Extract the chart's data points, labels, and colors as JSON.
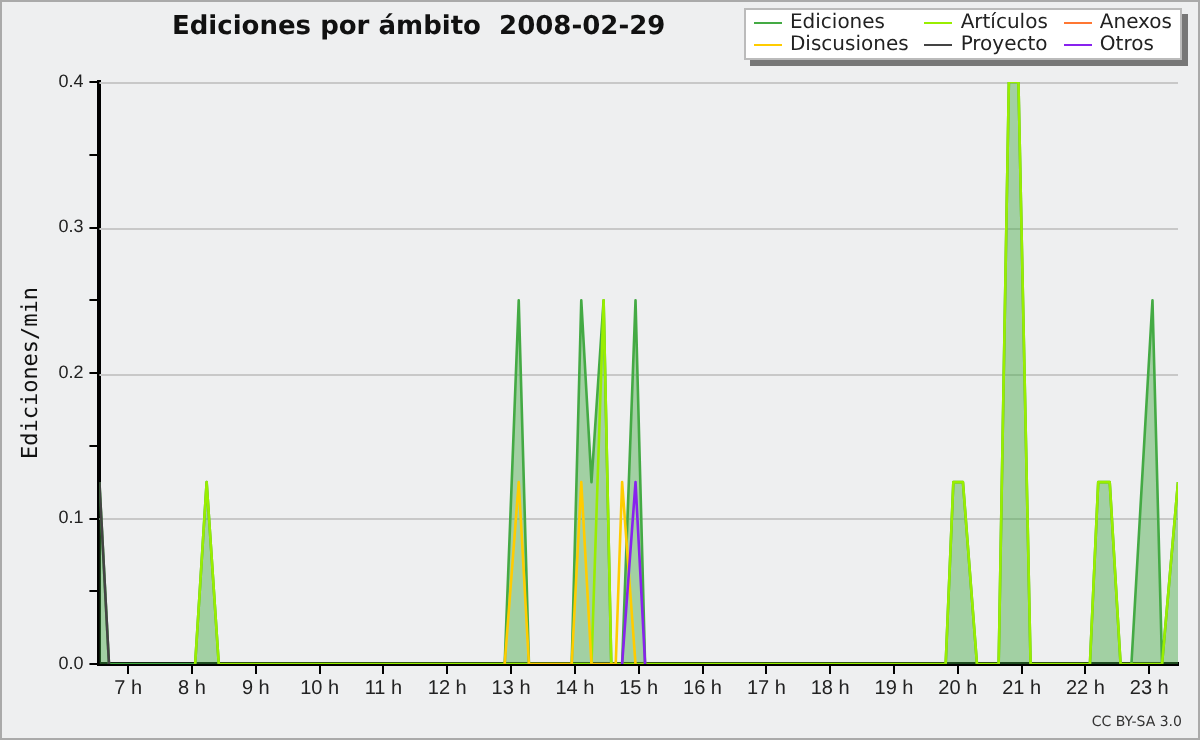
{
  "chart_data": {
    "type": "area",
    "title": "Ediciones por ámbito  2008-02-29",
    "ylabel": "Ediciones/min",
    "xlim": [
      6.55,
      23.45
    ],
    "xticks": [
      {
        "value": 7,
        "label": "7 h"
      },
      {
        "value": 8,
        "label": "8 h"
      },
      {
        "value": 9,
        "label": "9 h"
      },
      {
        "value": 10,
        "label": "10 h"
      },
      {
        "value": 11,
        "label": "11 h"
      },
      {
        "value": 12,
        "label": "12 h"
      },
      {
        "value": 13,
        "label": "13 h"
      },
      {
        "value": 14,
        "label": "14 h"
      },
      {
        "value": 15,
        "label": "15 h"
      },
      {
        "value": 16,
        "label": "16 h"
      },
      {
        "value": 17,
        "label": "17 h"
      },
      {
        "value": 18,
        "label": "18 h"
      },
      {
        "value": 19,
        "label": "19 h"
      },
      {
        "value": 20,
        "label": "20 h"
      },
      {
        "value": 21,
        "label": "21 h"
      },
      {
        "value": 22,
        "label": "22 h"
      },
      {
        "value": 23,
        "label": "23 h"
      }
    ],
    "ylim": [
      0,
      0.4
    ],
    "yticks": [
      {
        "value": 0,
        "label": "0.0"
      },
      {
        "value": 0.05,
        "label": null
      },
      0.1,
      {
        "value": 0.15,
        "label": null
      },
      0.2,
      {
        "value": 0.25,
        "label": null
      },
      0.3,
      {
        "value": 0.35,
        "label": null
      },
      0.4
    ],
    "grid": "y",
    "legend": "top right",
    "marker": "none",
    "line_style": "solid",
    "series": [
      {
        "name": "Ediciones",
        "color": "#44aa44",
        "x": [
          6.55,
          6.7,
          8.05,
          8.23,
          8.42,
          12.9,
          13.12,
          13.28,
          13.95,
          14.1,
          14.26,
          14.45,
          14.57,
          14.74,
          14.95,
          15.1,
          19.81,
          19.93,
          20.08,
          20.3,
          20.64,
          20.8,
          20.95,
          21.14,
          22.07,
          22.2,
          22.38,
          22.55,
          22.72,
          23.05,
          23.2,
          23.45
        ],
        "values": [
          0.125,
          0,
          0,
          0.125,
          0,
          0,
          0.25,
          0,
          0,
          0.25,
          0.125,
          0.25,
          0,
          0,
          0.25,
          0,
          0,
          0.125,
          0.125,
          0,
          0,
          0.4,
          0.4,
          0,
          0,
          0.125,
          0.125,
          0,
          0,
          0.25,
          0,
          0.125
        ]
      },
      {
        "name": "Artículos",
        "type": "line",
        "color": "#99ee00",
        "x": [
          8.05,
          8.23,
          8.42,
          14.26,
          14.45,
          14.57,
          19.81,
          19.93,
          20.08,
          20.3,
          20.64,
          20.8,
          20.95,
          21.14,
          22.07,
          22.2,
          22.38,
          22.55,
          23.2,
          23.45
        ],
        "values": [
          0,
          0.125,
          0,
          0,
          0.25,
          0,
          0,
          0.125,
          0.125,
          0,
          0,
          0.4,
          0.4,
          0,
          0,
          0.125,
          0.125,
          0,
          0,
          0.125
        ]
      },
      {
        "name": "Anexos",
        "type": "line",
        "color": "#ff7733"
      },
      {
        "name": "Discusiones",
        "type": "line",
        "color": "#ffcc00",
        "x": [
          12.9,
          13.12,
          13.28,
          13.95,
          14.1,
          14.26,
          14.64,
          14.74,
          14.95
        ],
        "values": [
          0,
          0.125,
          0,
          0,
          0.125,
          0,
          0,
          0.125,
          0
        ]
      },
      {
        "name": "Proyecto",
        "type": "line",
        "color": "#444444",
        "x": [
          6.55,
          6.7
        ],
        "values": [
          0.125,
          0
        ]
      },
      {
        "name": "Otros",
        "type": "line",
        "color": "#8822ee",
        "x": [
          14.74,
          14.95,
          15.1
        ],
        "values": [
          0,
          0.125,
          0
        ]
      }
    ],
    "annotations": [
      "CC BY-SA 3.0"
    ]
  }
}
